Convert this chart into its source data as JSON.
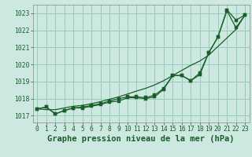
{
  "title": "Graphe pression niveau de la mer (hPa)",
  "bg_color": "#cce8e0",
  "grid_color": "#99ccbb",
  "line_color": "#1a5e2a",
  "ylim": [
    1016.6,
    1023.5
  ],
  "xlim": [
    -0.5,
    23.5
  ],
  "yticks": [
    1017,
    1018,
    1019,
    1020,
    1021,
    1022,
    1023
  ],
  "xticks": [
    0,
    1,
    2,
    3,
    4,
    5,
    6,
    7,
    8,
    9,
    10,
    11,
    12,
    13,
    14,
    15,
    16,
    17,
    18,
    19,
    20,
    21,
    22,
    23
  ],
  "line1": [
    1017.4,
    1017.5,
    1017.1,
    1017.3,
    1017.45,
    1017.45,
    1017.55,
    1017.65,
    1017.8,
    1017.85,
    1018.05,
    1018.05,
    1018.0,
    1018.1,
    1018.55,
    1019.35,
    1019.35,
    1019.05,
    1019.4,
    1020.7,
    1021.6,
    1023.15,
    1022.15,
    1022.9
  ],
  "line2": [
    1017.4,
    1017.5,
    1017.1,
    1017.3,
    1017.45,
    1017.5,
    1017.6,
    1017.7,
    1017.85,
    1018.0,
    1018.1,
    1018.1,
    1018.05,
    1018.2,
    1018.6,
    1019.35,
    1019.35,
    1019.05,
    1019.5,
    1020.7,
    1021.6,
    1023.2,
    1022.6,
    1022.9
  ],
  "line3": [
    1017.4,
    1017.35,
    1017.35,
    1017.45,
    1017.55,
    1017.6,
    1017.7,
    1017.82,
    1017.96,
    1018.1,
    1018.27,
    1018.44,
    1018.6,
    1018.8,
    1019.05,
    1019.35,
    1019.65,
    1019.95,
    1020.2,
    1020.55,
    1021.05,
    1021.55,
    1022.05,
    1022.9
  ],
  "title_fontsize": 7.5,
  "tick_fontsize": 5.8,
  "tick_color": "#1a5e2a",
  "spine_color": "#888888"
}
